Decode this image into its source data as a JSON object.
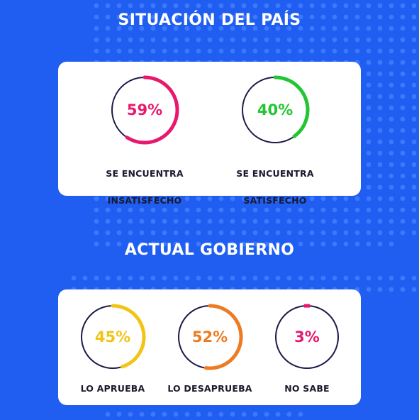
{
  "colors": {
    "background": "#1f5ef0",
    "dots": "#3d78ff",
    "card": "#ffffff",
    "ring_track": "#1c1a4a"
  },
  "chart_data": [
    {
      "type": "donut",
      "title": "SITUACIÓN DEL PAÍS",
      "categories": [
        "SE ENCUENTRA INSATISFECHO",
        "SE ENCUENTRA SATISFECHO"
      ],
      "values": [
        59,
        40
      ],
      "unit": "%",
      "items": [
        {
          "value": 59,
          "value_label": "59%",
          "line1": "SE ENCUENTRA",
          "line2": "INSATISFECHO",
          "color": "#e8196d"
        },
        {
          "value": 40,
          "value_label": "40%",
          "line1": "SE ENCUENTRA",
          "line2": "SATISFECHO",
          "color": "#22c532"
        }
      ]
    },
    {
      "type": "donut",
      "title": "ACTUAL GOBIERNO",
      "categories": [
        "LO APRUEBA",
        "LO DESAPRUEBA",
        "NO SABE"
      ],
      "values": [
        45,
        52,
        3
      ],
      "unit": "%",
      "items": [
        {
          "value": 45,
          "value_label": "45%",
          "line1": "LO APRUEBA",
          "line2": "",
          "color": "#f2c418"
        },
        {
          "value": 52,
          "value_label": "52%",
          "line1": "LO DESAPRUEBA",
          "line2": "",
          "color": "#ee7a22"
        },
        {
          "value": 3,
          "value_label": "3%",
          "line1": "NO SABE",
          "line2": "",
          "color": "#e8196d"
        }
      ]
    }
  ]
}
